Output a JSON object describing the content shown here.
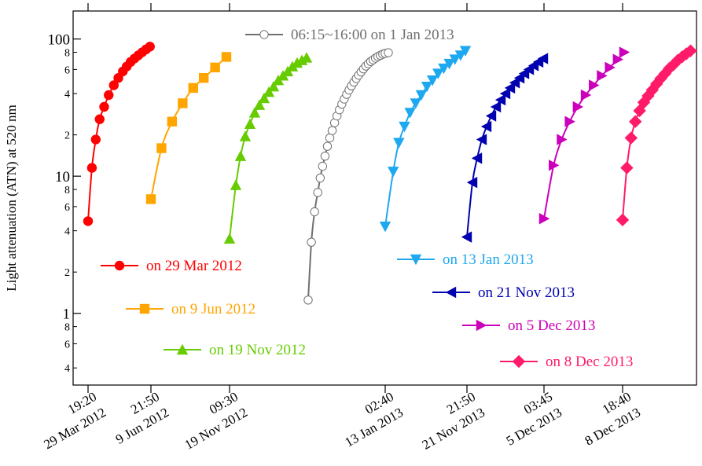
{
  "chart_data": {
    "type": "line",
    "title": "",
    "xlabel": "",
    "ylabel": "Light attenuation (ATN) at 520 nm",
    "yscale": "log",
    "ylim": [
      0.3,
      160
    ],
    "grid": false,
    "y_ticks": [
      {
        "value": 1,
        "label": "1"
      },
      {
        "value": 10,
        "label": "10"
      },
      {
        "value": 100,
        "label": "100"
      }
    ],
    "y_minor_ticks": [
      {
        "value": 0.4,
        "label": "4"
      },
      {
        "value": 0.6,
        "label": "6"
      },
      {
        "value": 0.8,
        "label": "8"
      },
      {
        "value": 2,
        "label": "2"
      },
      {
        "value": 4,
        "label": "4"
      },
      {
        "value": 6,
        "label": "6"
      },
      {
        "value": 8,
        "label": "8"
      },
      {
        "value": 20,
        "label": "2"
      },
      {
        "value": 40,
        "label": "4"
      },
      {
        "value": 60,
        "label": "6"
      },
      {
        "value": 80,
        "label": "8"
      }
    ],
    "x_ticks": [
      {
        "time": "19:20",
        "date": "29 Mar 2012"
      },
      {
        "time": "21:50",
        "date": "9 Jun 2012"
      },
      {
        "time": "09:30",
        "date": "19 Nov 2012"
      },
      {
        "time": "02:40",
        "date": "13 Jan 2013"
      },
      {
        "time": "21:50",
        "date": "21 Nov 2013"
      },
      {
        "time": "03:45",
        "date": "5 Dec 2013"
      },
      {
        "time": "18:40",
        "date": "8 Dec 2013"
      }
    ],
    "series": [
      {
        "name": "on 29 Mar 2012",
        "color": "#ff0000",
        "marker": "circle",
        "x": [
          0.0,
          0.06,
          0.12,
          0.18,
          0.25,
          0.32,
          0.4,
          0.47,
          0.54,
          0.6,
          0.66,
          0.72,
          0.78,
          0.84,
          0.9,
          0.96
        ],
        "y": [
          4.7,
          11.5,
          18.5,
          26,
          32,
          39,
          46,
          52,
          58,
          63,
          68,
          72,
          76,
          80,
          84,
          88
        ]
      },
      {
        "name": "on 9 Jun 2012",
        "color": "#ffa500",
        "marker": "square",
        "x": [
          0.0,
          0.14,
          0.28,
          0.42,
          0.56,
          0.7,
          0.85,
          1.0
        ],
        "y": [
          6.8,
          16,
          25,
          34,
          44,
          52,
          62,
          74
        ]
      },
      {
        "name": "on 19 Nov 2012",
        "color": "#66cc00",
        "marker": "triangle-up",
        "x": [
          0.0,
          0.08,
          0.14,
          0.2,
          0.26,
          0.32,
          0.38,
          0.44,
          0.5,
          0.56,
          0.62,
          0.68,
          0.74,
          0.8,
          0.86,
          0.92,
          0.98
        ],
        "y": [
          3.5,
          8.6,
          14,
          19.5,
          24,
          29,
          33,
          37,
          41,
          45,
          50,
          54,
          58,
          63,
          67,
          70,
          73
        ]
      },
      {
        "name": "06:15~16:00 on 1 Jan 2013",
        "color": "#707070",
        "marker": "circle-open",
        "x": [
          0.0,
          0.04,
          0.08,
          0.12,
          0.15,
          0.18,
          0.21,
          0.24,
          0.27,
          0.3,
          0.33,
          0.36,
          0.39,
          0.42,
          0.45,
          0.48,
          0.51,
          0.54,
          0.57,
          0.6,
          0.63,
          0.66,
          0.69,
          0.72,
          0.75,
          0.78,
          0.81,
          0.84,
          0.87,
          0.9,
          0.93,
          0.96,
          1.0
        ],
        "y": [
          1.25,
          3.3,
          5.5,
          7.6,
          9.7,
          11.8,
          14,
          16.5,
          19,
          21.5,
          24.5,
          27.5,
          30.5,
          33.5,
          36.5,
          39.5,
          42.5,
          45.5,
          48.5,
          51.5,
          54.5,
          57.5,
          60.5,
          63.5,
          66,
          68.5,
          70.5,
          72.5,
          74.5,
          76,
          77.5,
          78.5,
          79.5
        ]
      },
      {
        "name": "on 13 Jan 2013",
        "color": "#1ea8ef",
        "marker": "triangle-down",
        "x": [
          0.0,
          0.1,
          0.17,
          0.24,
          0.31,
          0.38,
          0.45,
          0.52,
          0.59,
          0.66,
          0.73,
          0.8,
          0.87,
          0.94,
          1.0
        ],
        "y": [
          4.3,
          10.8,
          17.5,
          23,
          29,
          34,
          39,
          45,
          50,
          56,
          61,
          66,
          71,
          76,
          82
        ]
      },
      {
        "name": "on 21 Nov 2013",
        "color": "#0000b0",
        "marker": "triangle-left",
        "x": [
          0.0,
          0.07,
          0.13,
          0.19,
          0.25,
          0.31,
          0.37,
          0.43,
          0.49,
          0.55,
          0.61,
          0.67,
          0.73,
          0.79,
          0.85,
          0.91,
          0.97
        ],
        "y": [
          3.6,
          9,
          13.5,
          18.5,
          23,
          27.5,
          32,
          36,
          40,
          44,
          48,
          52,
          56,
          60,
          64,
          68,
          72
        ]
      },
      {
        "name": "on 5 Dec 2013",
        "color": "#cc00bb",
        "marker": "triangle-right",
        "x": [
          0.0,
          0.12,
          0.22,
          0.32,
          0.42,
          0.52,
          0.62,
          0.72,
          0.82,
          0.92,
          1.0
        ],
        "y": [
          4.9,
          12,
          18.5,
          25,
          32,
          39,
          46,
          54,
          62,
          71,
          80
        ]
      },
      {
        "name": "on 8 Dec 2013",
        "color": "#ff1a6a",
        "marker": "diamond",
        "x": [
          0.0,
          0.06,
          0.12,
          0.18,
          0.24,
          0.3,
          0.36,
          0.42,
          0.48,
          0.54,
          0.6,
          0.66,
          0.72,
          0.78,
          0.84,
          0.9,
          0.96
        ],
        "y": [
          4.8,
          11.5,
          19,
          25,
          30,
          34.5,
          38.5,
          42.5,
          47,
          51.5,
          56,
          61,
          65,
          70,
          74,
          78,
          82
        ]
      }
    ]
  }
}
